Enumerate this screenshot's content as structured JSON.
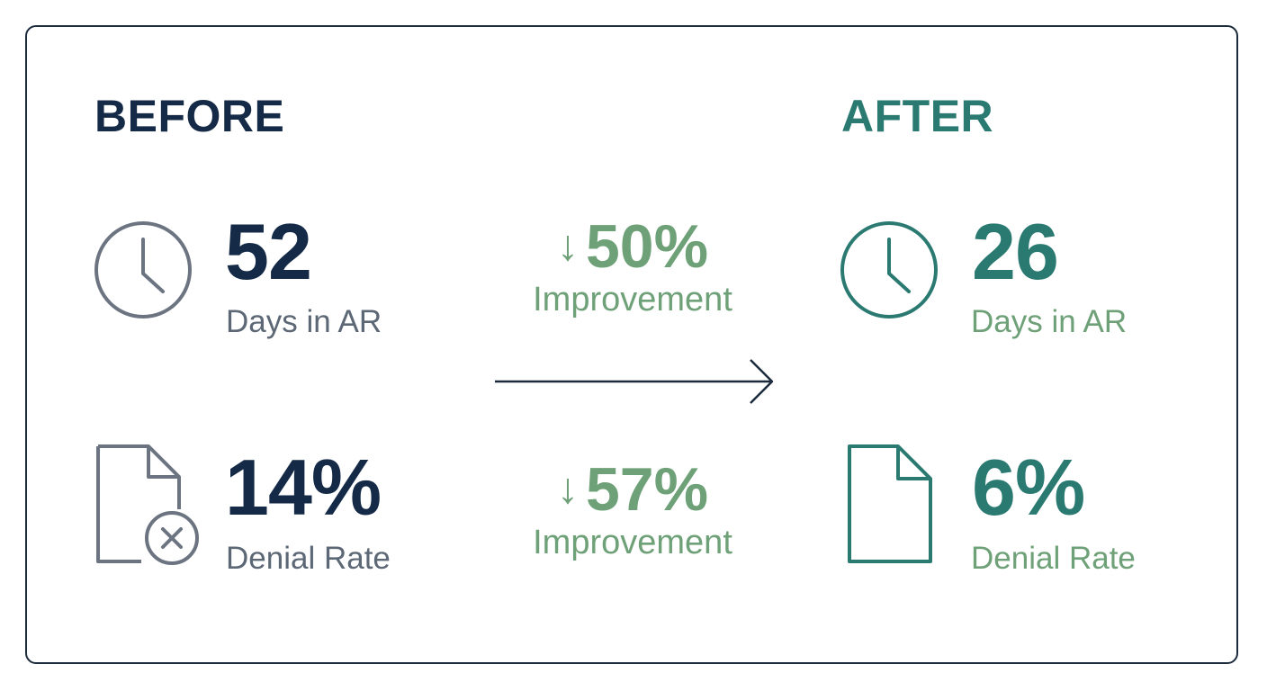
{
  "before": {
    "heading": "BEFORE",
    "color": "#142a47",
    "label_color": "#5d6876",
    "metrics": [
      {
        "icon": "clock-icon",
        "value": "52",
        "label": "Days in AR"
      },
      {
        "icon": "document-error-icon",
        "value": "14%",
        "label": "Denial Rate"
      }
    ]
  },
  "after": {
    "heading": "AFTER",
    "color": "#2a7a72",
    "label_color": "#6fa178",
    "metrics": [
      {
        "icon": "clock-icon",
        "value": "26",
        "label": "Days in AR"
      },
      {
        "icon": "document-icon",
        "value": "6%",
        "label": "Denial Rate"
      }
    ]
  },
  "improvements": [
    {
      "arrow": "↓",
      "percent": "50%",
      "label": "Improvement"
    },
    {
      "arrow": "↓",
      "percent": "57%",
      "label": "Improvement"
    }
  ],
  "connector": {
    "icon": "right-arrow-icon"
  }
}
